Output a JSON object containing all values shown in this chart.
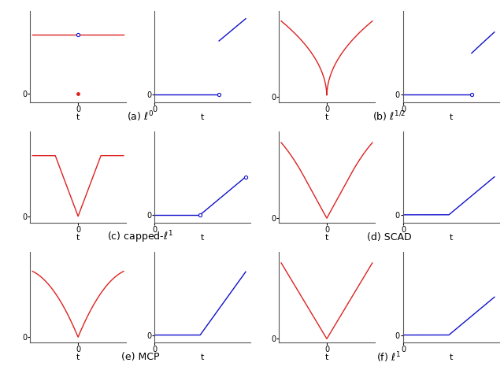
{
  "subfig_labels": [
    "(a) $\\ell^0$",
    "(b) $\\ell^{1/2}$",
    "(c) capped-$\\ell^1$",
    "(d) SCAD",
    "(e) MCP",
    "(f) $\\ell^1$"
  ],
  "red_color": "#dd2222",
  "blue_color": "#1111cc",
  "lam": 1.0,
  "scad_a": 3.7,
  "mcp_gamma": 2.5,
  "t_min": -2.0,
  "t_max": 2.0
}
